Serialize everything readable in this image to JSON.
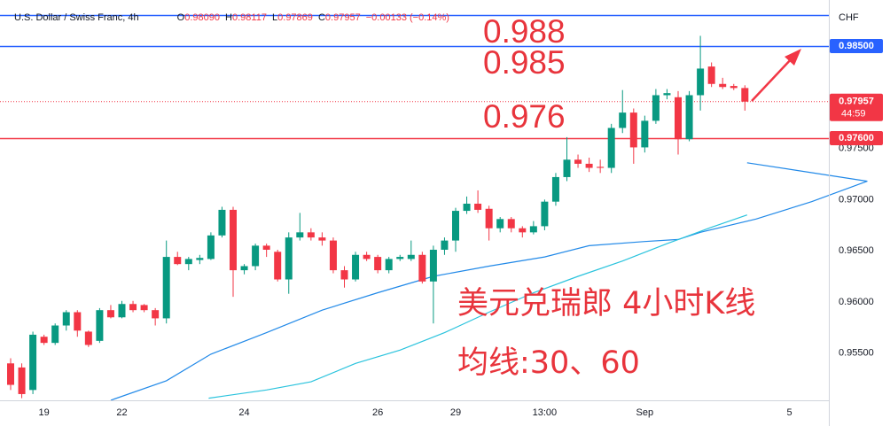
{
  "header": {
    "symbol": "U.S. Dollar / Swiss Franc, 4h",
    "ohlc": [
      {
        "key": "O",
        "value": "0.98090"
      },
      {
        "key": "H",
        "value": "0.98117"
      },
      {
        "key": "L",
        "value": "0.97869"
      },
      {
        "key": "C",
        "value": "0.97957"
      }
    ],
    "change": "−0.00133 (−0.14%)"
  },
  "chart_data": {
    "type": "candlestick",
    "categories": [
      null,
      null,
      null,
      "19",
      null,
      null,
      null,
      null,
      null,
      null,
      "22",
      null,
      null,
      null,
      null,
      null,
      null,
      null,
      null,
      null,
      null,
      "24",
      null,
      null,
      null,
      null,
      null,
      null,
      null,
      null,
      null,
      null,
      null,
      "26",
      null,
      null,
      null,
      null,
      null,
      null,
      "29",
      null,
      null,
      null,
      null,
      null,
      null,
      null,
      "13:00",
      null,
      null,
      null,
      null,
      null,
      null,
      null,
      null,
      "Sep",
      null,
      null,
      null,
      null,
      null,
      null,
      null,
      null,
      null,
      null,
      null,
      null,
      "5"
    ],
    "open": [
      0.954,
      0.9536,
      0.9514,
      0.9566,
      0.956,
      0.9577,
      0.959,
      0.9571,
      0.9562,
      0.9592,
      0.9585,
      0.9598,
      0.9597,
      0.9592,
      0.9584,
      0.9644,
      0.9637,
      0.9641,
      0.9642,
      0.9665,
      0.969,
      0.9631,
      0.9635,
      0.9655,
      0.9649,
      0.9622,
      0.9663,
      0.9668,
      0.9663,
      0.966,
      0.9631,
      0.9622,
      0.9646,
      0.9644,
      0.9631,
      0.9642,
      0.9642,
      0.9646,
      0.962,
      0.9651,
      0.966,
      0.9689,
      0.9696,
      0.9691,
      0.9672,
      0.9681,
      0.9672,
      0.9668,
      0.9674,
      0.9698,
      0.9722,
      0.9739,
      0.9735,
      0.9732,
      0.9731,
      0.977,
      0.9785,
      0.9751,
      0.9777,
      0.9802,
      0.98,
      0.9759,
      0.9802,
      0.983,
      0.9813,
      0.9811,
      0.9809,
      null,
      null,
      null,
      null
    ],
    "high": [
      0.9545,
      0.954,
      0.9571,
      0.9568,
      0.9579,
      0.9592,
      0.9592,
      0.9572,
      0.9594,
      0.9597,
      0.9601,
      0.9601,
      0.9598,
      0.9594,
      0.966,
      0.9649,
      0.9644,
      0.9646,
      0.9668,
      0.9693,
      0.9693,
      0.9637,
      0.9657,
      0.9657,
      0.9651,
      0.9668,
      0.9687,
      0.9672,
      0.9668,
      0.9663,
      0.9635,
      0.9649,
      0.9649,
      0.9646,
      0.9644,
      0.9646,
      0.966,
      0.9649,
      0.9655,
      0.9663,
      0.9692,
      0.9703,
      0.9709,
      0.9694,
      0.9683,
      0.9683,
      0.9674,
      0.9679,
      0.97,
      0.9726,
      0.9761,
      0.9744,
      0.9741,
      0.9739,
      0.9774,
      0.9807,
      0.9789,
      0.9782,
      0.9808,
      0.9808,
      0.9806,
      0.9806,
      0.986,
      0.9834,
      0.9819,
      0.9813,
      0.98117,
      null,
      null,
      null,
      null
    ],
    "low": [
      0.9514,
      0.9506,
      0.951,
      0.9558,
      0.9558,
      0.9572,
      0.9566,
      0.9556,
      0.956,
      0.9584,
      0.9584,
      0.959,
      0.959,
      0.9577,
      0.9579,
      0.9636,
      0.9631,
      0.9637,
      0.9641,
      0.9663,
      0.9605,
      0.9627,
      0.9631,
      0.9644,
      0.962,
      0.9608,
      0.966,
      0.966,
      0.9655,
      0.9628,
      0.9614,
      0.962,
      0.964,
      0.9628,
      0.9628,
      0.964,
      0.964,
      0.9618,
      0.9579,
      0.9646,
      0.9649,
      0.9686,
      0.9687,
      0.966,
      0.9668,
      0.9668,
      0.9663,
      0.9666,
      0.967,
      0.9694,
      0.9718,
      0.9731,
      0.9727,
      0.9726,
      0.9726,
      0.9765,
      0.9735,
      0.9746,
      0.9774,
      0.9798,
      0.9744,
      0.9757,
      0.9787,
      0.981,
      0.9808,
      0.9807,
      0.97869,
      null,
      null,
      null,
      null
    ],
    "close": [
      0.9519,
      0.951,
      0.9568,
      0.956,
      0.9577,
      0.959,
      0.9572,
      0.9558,
      0.9592,
      0.9585,
      0.9598,
      0.9592,
      0.9592,
      0.9584,
      0.9644,
      0.9637,
      0.9642,
      0.9643,
      0.9665,
      0.969,
      0.9631,
      0.9635,
      0.9655,
      0.9651,
      0.9622,
      0.9663,
      0.9668,
      0.9663,
      0.966,
      0.9631,
      0.9622,
      0.9646,
      0.9642,
      0.9631,
      0.9642,
      0.9644,
      0.9646,
      0.962,
      0.9651,
      0.966,
      0.9689,
      0.9696,
      0.969,
      0.9672,
      0.9681,
      0.9672,
      0.9668,
      0.9674,
      0.9698,
      0.9722,
      0.9739,
      0.9735,
      0.9731,
      0.9731,
      0.977,
      0.9785,
      0.9751,
      0.9777,
      0.9802,
      0.9804,
      0.9759,
      0.9802,
      0.9828,
      0.9813,
      0.981,
      0.9809,
      0.97957,
      null,
      null,
      null,
      null
    ],
    "up_color": "#089981",
    "down_color": "#f23645",
    "moving_averages": [
      {
        "color": "#2189e8",
        "x": [
          9,
          14,
          18,
          23,
          28,
          33,
          38,
          43,
          48,
          52,
          57,
          60,
          62,
          67,
          72,
          77,
          66.2
        ],
        "values": [
          0.9504,
          0.9523,
          0.9549,
          0.957,
          0.9592,
          0.9609,
          0.9625,
          0.9635,
          0.9644,
          0.9655,
          0.9659,
          0.9661,
          0.9668,
          0.9681,
          0.9698,
          0.9718,
          0.9736
        ]
      },
      {
        "color": "#2ac3dd",
        "x": [
          17.8,
          23,
          27,
          31,
          35,
          39,
          43,
          47,
          51,
          55,
          59,
          63,
          66.2
        ],
        "values": [
          0.9506,
          0.9514,
          0.9522,
          0.954,
          0.9553,
          0.957,
          0.959,
          0.9609,
          0.9625,
          0.964,
          0.9657,
          0.9673,
          0.9685
        ]
      }
    ],
    "ylim": [
      0.95039,
      0.9895
    ],
    "yticks": [
      {
        "value": 0.955,
        "label": "0.95500"
      },
      {
        "value": 0.96,
        "label": "0.96000"
      },
      {
        "value": 0.965,
        "label": "0.96500"
      },
      {
        "value": 0.97,
        "label": "0.97000"
      },
      {
        "value": 0.975,
        "label": "0.97500"
      }
    ],
    "grid": false,
    "currency": "CHF",
    "hlines": [
      {
        "value": 0.98803,
        "color": "#2962ff"
      },
      {
        "value": 0.985,
        "color": "#2962ff",
        "label": "0.98500"
      },
      {
        "value": 0.976,
        "color": "#f23645",
        "label": "0.97600"
      }
    ],
    "last_price": 0.97957,
    "countdown": "44:59",
    "annotations": [
      "0.988",
      "0.985",
      "0.976",
      "美元兑瑞郎 4小时K线",
      "均线:30、60"
    ]
  }
}
